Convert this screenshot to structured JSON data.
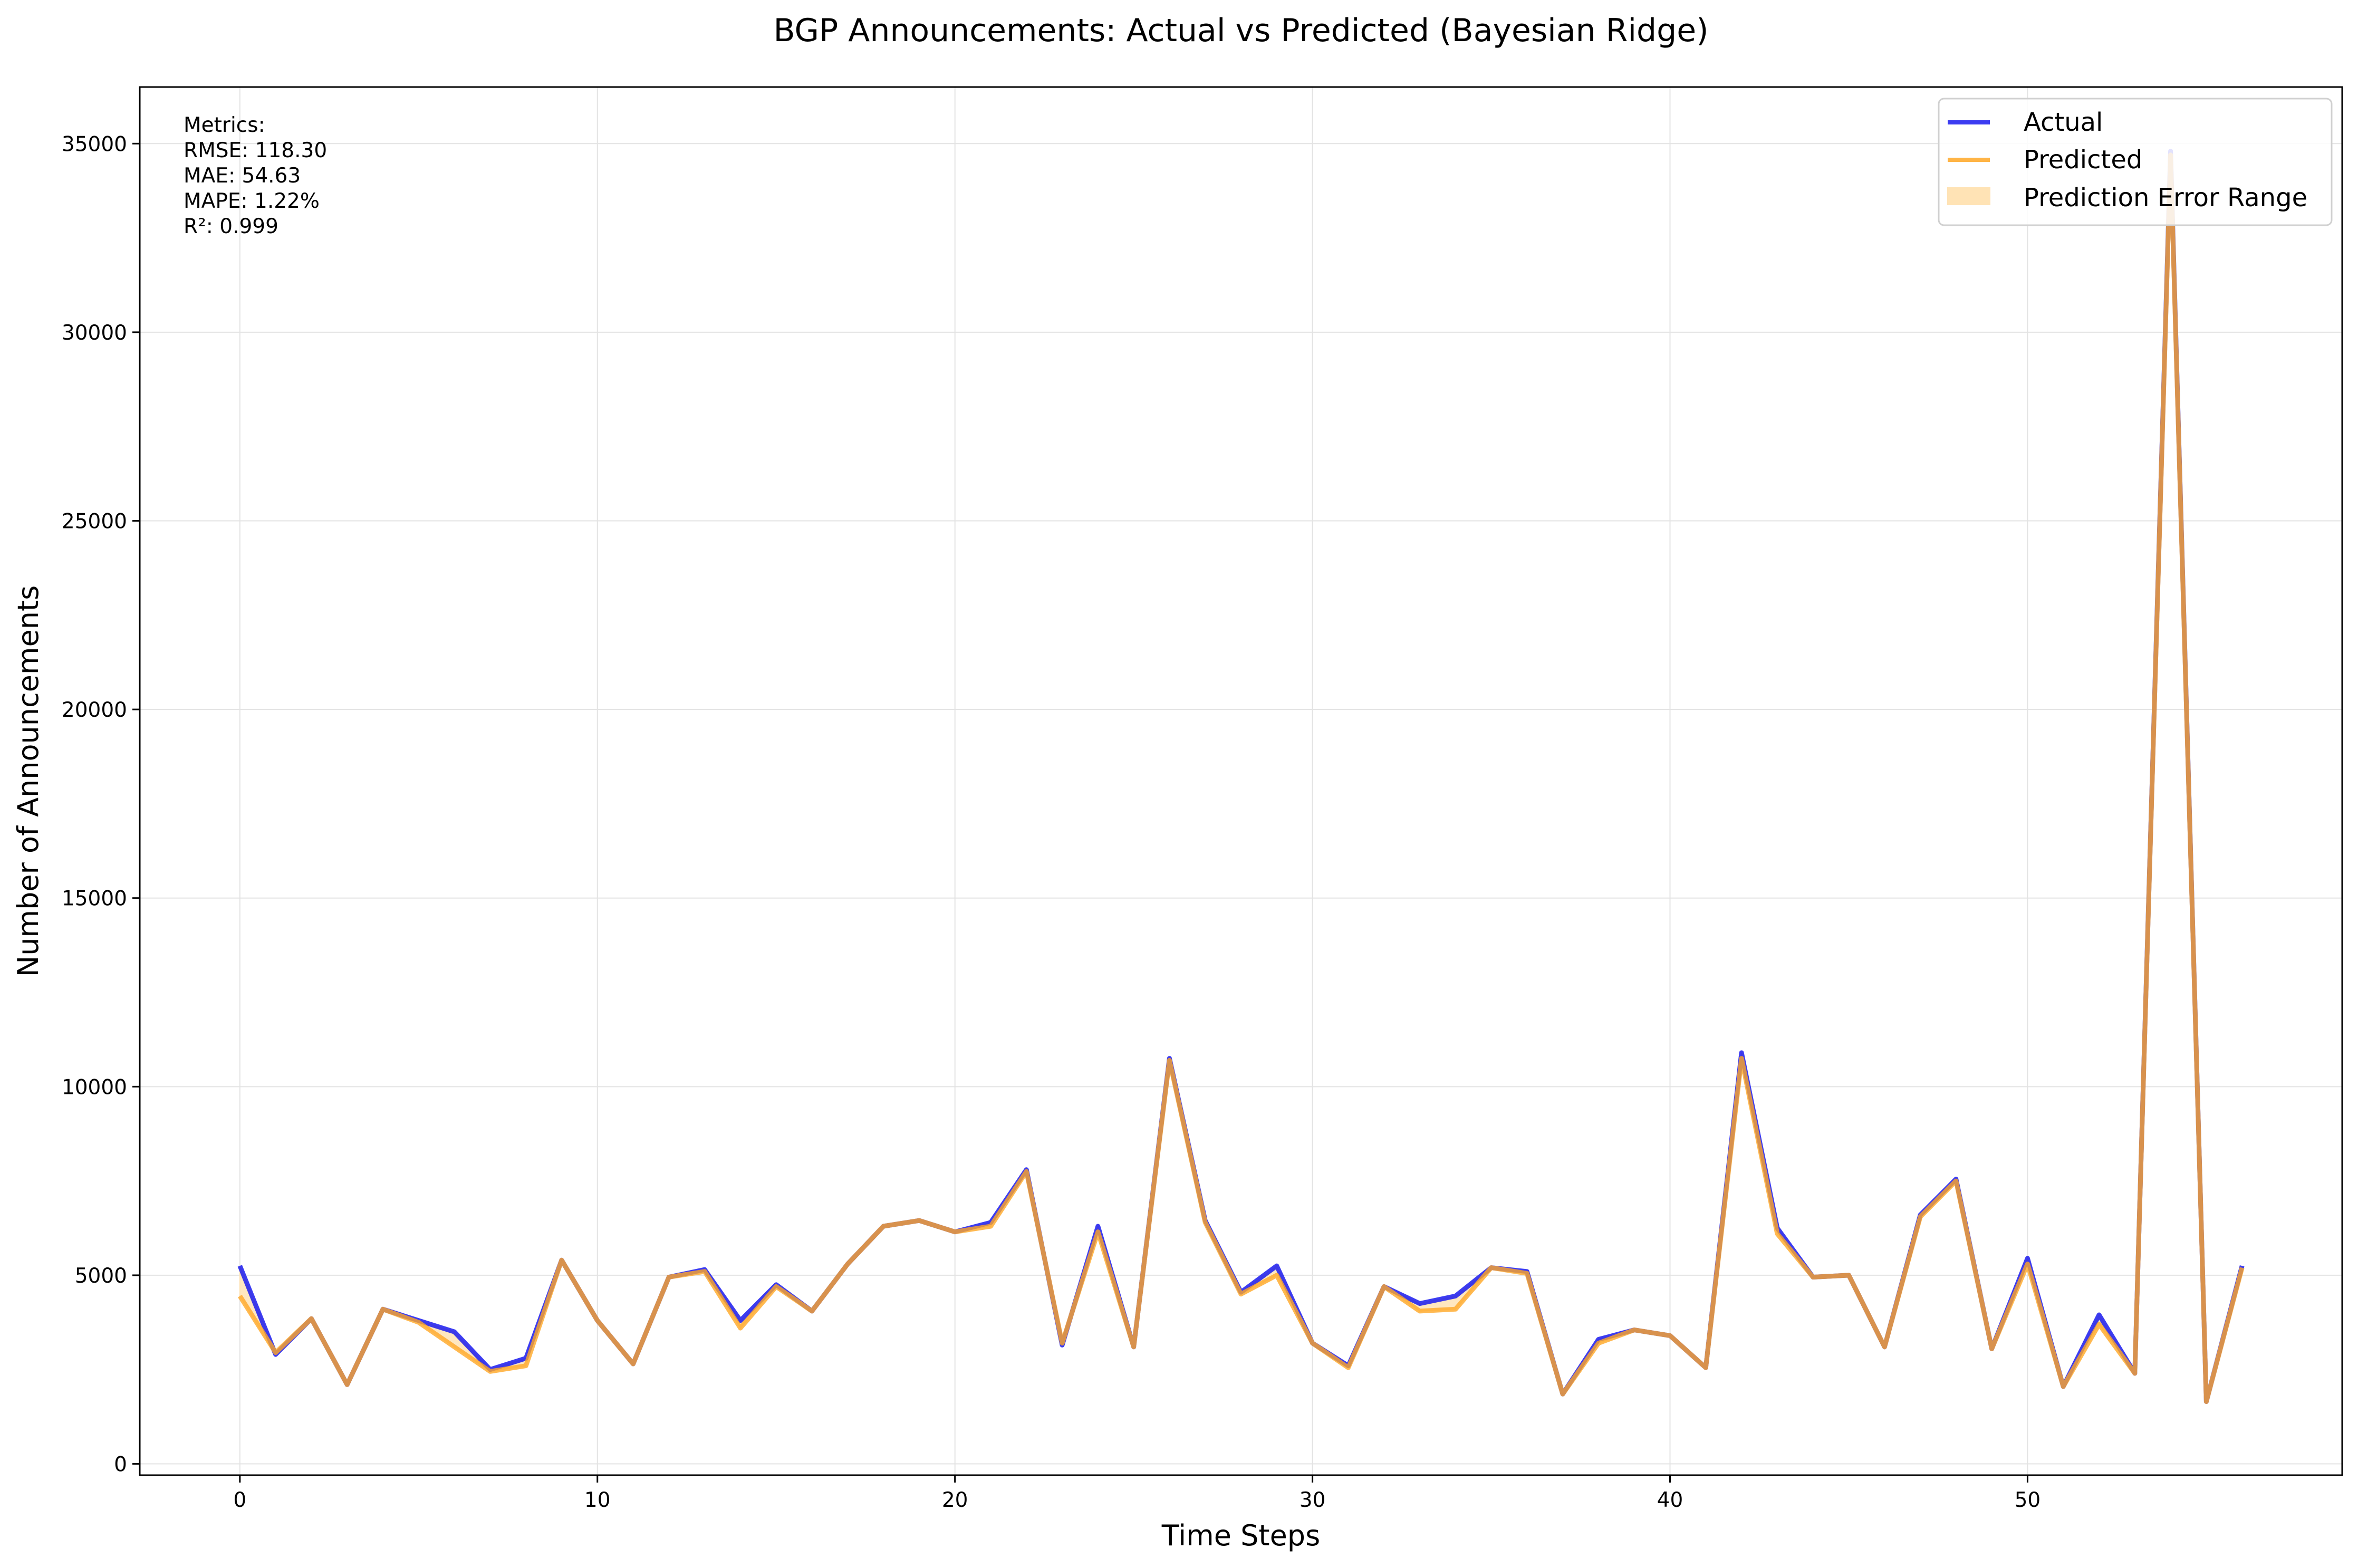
{
  "chart_data": {
    "type": "line",
    "title": "BGP Announcements: Actual vs Predicted (Bayesian Ridge)",
    "xlabel": "Time Steps",
    "ylabel": "Number of Announcements",
    "xlim": [
      -2.8,
      58.8
    ],
    "ylim": [
      -300,
      36500
    ],
    "xticks": [
      0,
      10,
      20,
      30,
      40,
      50
    ],
    "yticks": [
      0,
      5000,
      10000,
      15000,
      20000,
      25000,
      30000,
      35000
    ],
    "grid": true,
    "legend_position": "top-right",
    "colors": {
      "actual": "#1a1aee",
      "predicted": "#ffa726",
      "error_range": "#ffe3b5",
      "overlap": "#cc8a3c"
    },
    "x": [
      0,
      1,
      2,
      3,
      4,
      5,
      6,
      7,
      8,
      9,
      10,
      11,
      12,
      13,
      14,
      15,
      16,
      17,
      18,
      19,
      20,
      21,
      22,
      23,
      24,
      25,
      26,
      27,
      28,
      29,
      30,
      31,
      32,
      33,
      34,
      35,
      36,
      37,
      38,
      39,
      40,
      41,
      42,
      43,
      44,
      45,
      46,
      47,
      48,
      49,
      50,
      51,
      52,
      53,
      54,
      55,
      56
    ],
    "series": [
      {
        "name": "Actual",
        "values": [
          5250,
          2900,
          3850,
          2100,
          4100,
          3800,
          3500,
          2500,
          2800,
          5400,
          3800,
          2650,
          4950,
          5150,
          3800,
          4750,
          4050,
          5300,
          6300,
          6450,
          6150,
          6400,
          7800,
          3150,
          6300,
          3100,
          10750,
          6450,
          4550,
          5250,
          3200,
          2600,
          4700,
          4250,
          4450,
          5200,
          5100,
          1850,
          3300,
          3550,
          3400,
          2550,
          10900,
          6250,
          4950,
          5000,
          3100,
          6600,
          7550,
          3050,
          5450,
          2050,
          3950,
          2400,
          34800,
          1650,
          5250
        ]
      },
      {
        "name": "Predicted",
        "values": [
          4450,
          2950,
          3850,
          2100,
          4100,
          3750,
          3100,
          2450,
          2600,
          5400,
          3800,
          2650,
          4950,
          5100,
          3600,
          4700,
          4050,
          5300,
          6300,
          6450,
          6150,
          6300,
          7750,
          3200,
          6150,
          3100,
          10700,
          6400,
          4500,
          5000,
          3200,
          2550,
          4700,
          4050,
          4100,
          5200,
          5050,
          1850,
          3200,
          3550,
          3400,
          2550,
          10750,
          6100,
          4950,
          5000,
          3100,
          6550,
          7500,
          3050,
          5300,
          2050,
          3700,
          2400,
          34700,
          1650,
          5200
        ]
      },
      {
        "name": "Prediction Error Range"
      }
    ],
    "metrics": {
      "heading": "Metrics:",
      "lines": [
        "RMSE: 118.30",
        "MAE: 54.63",
        "MAPE: 1.22%",
        "R²: 0.999"
      ]
    }
  }
}
